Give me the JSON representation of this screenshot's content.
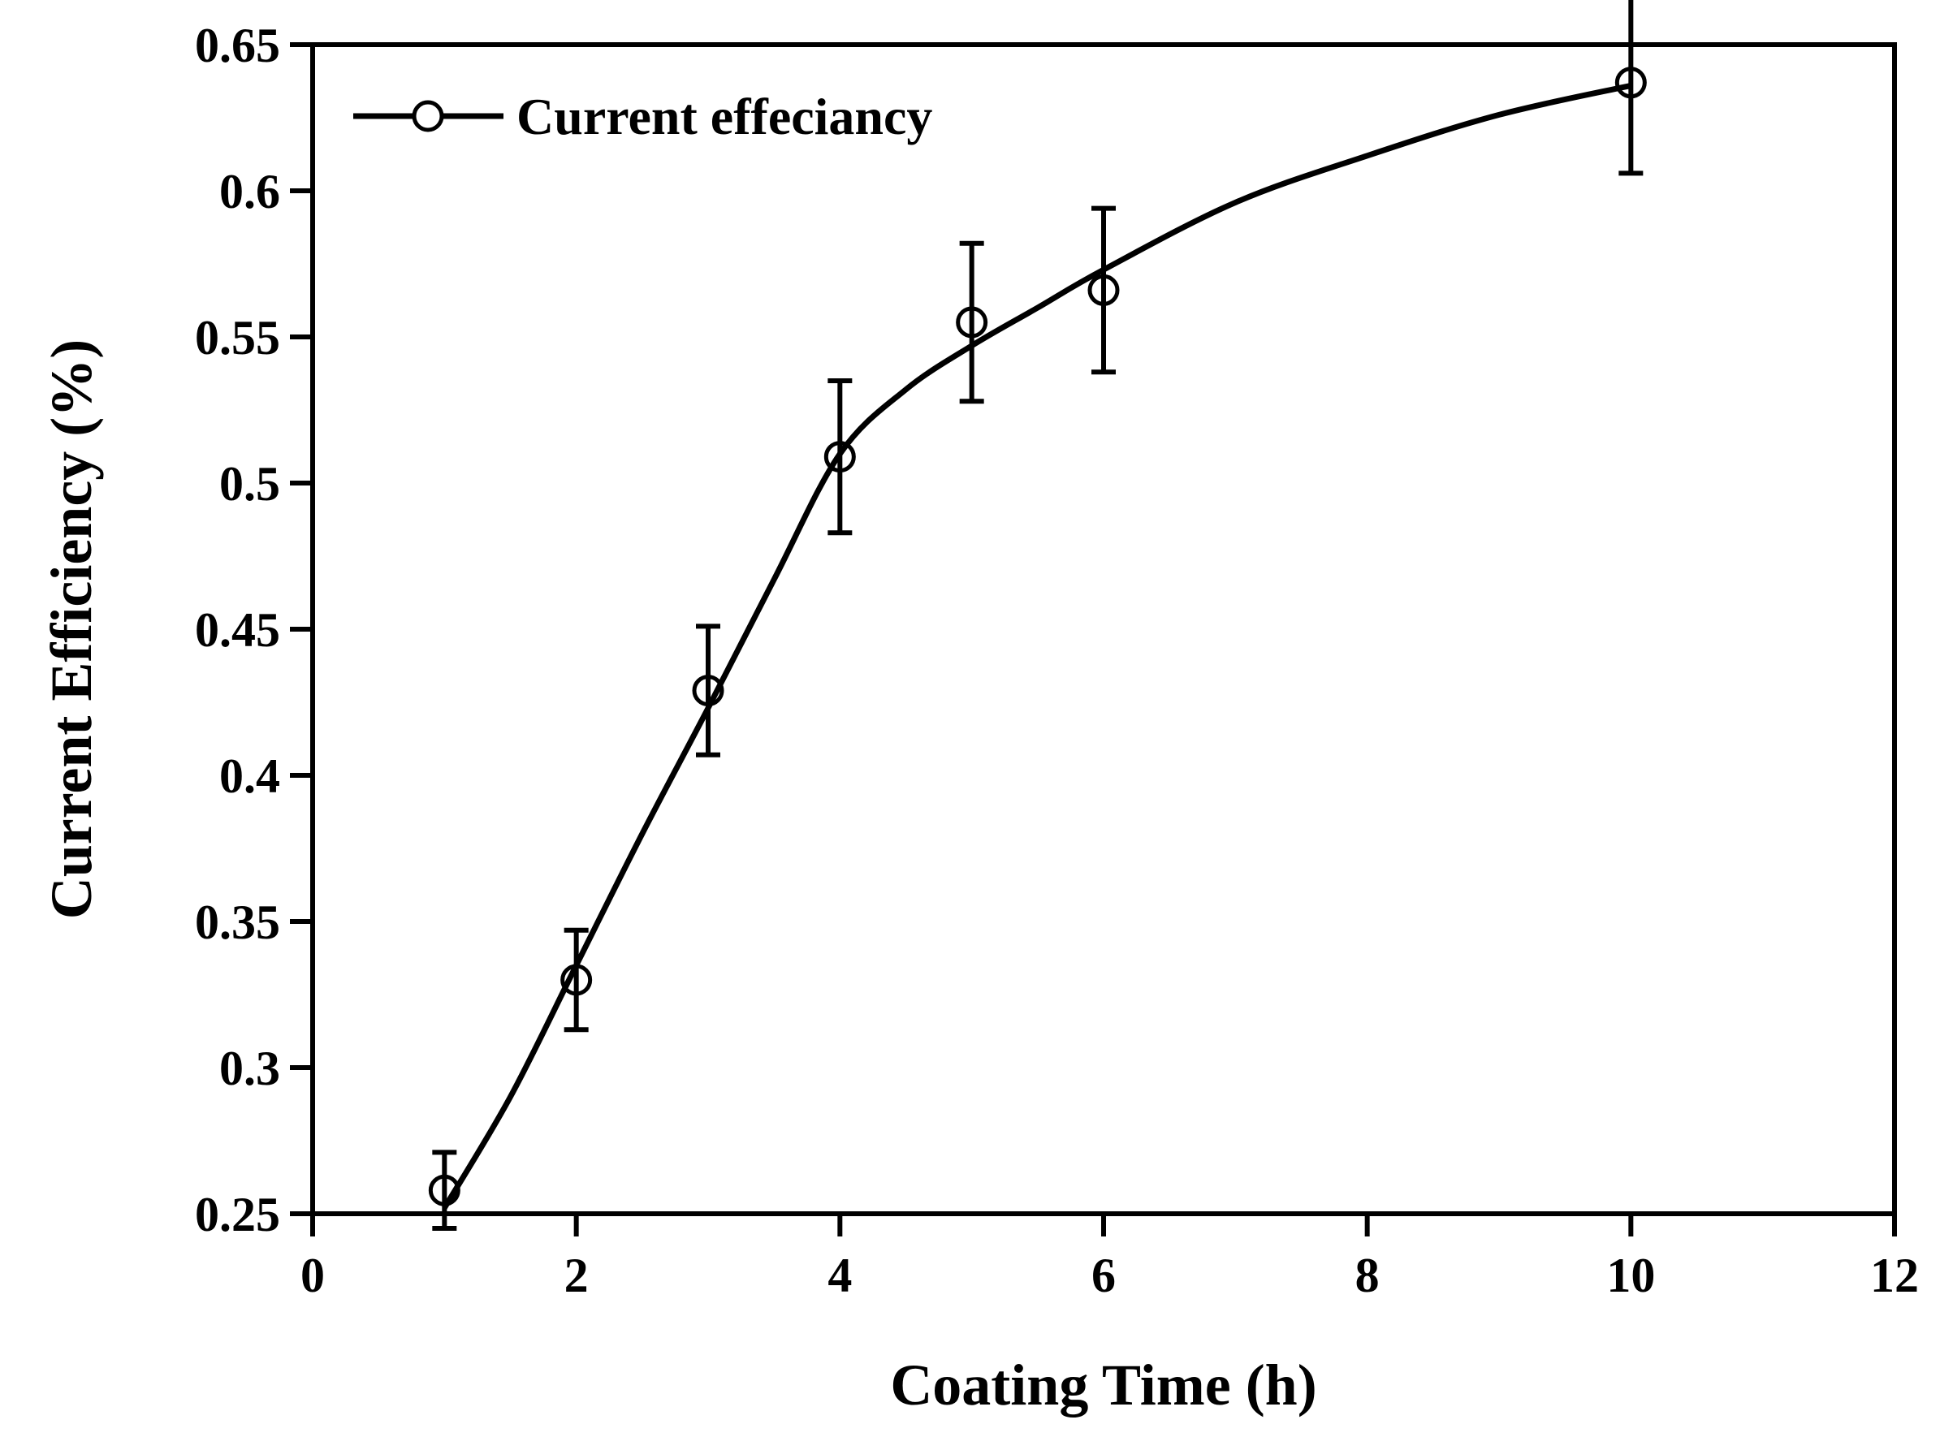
{
  "chart_data": {
    "type": "line",
    "xlabel": "Coating Time (h)",
    "ylabel": "Current Efficiency (%)",
    "xlim": [
      0,
      12
    ],
    "ylim": [
      0.25,
      0.65
    ],
    "x_ticks": [
      0,
      2,
      4,
      6,
      8,
      10,
      12
    ],
    "x_tick_labels": [
      "0",
      "2",
      "4",
      "6",
      "8",
      "10",
      "12"
    ],
    "y_ticks": [
      0.25,
      0.3,
      0.35,
      0.4,
      0.45,
      0.5,
      0.55,
      0.6,
      0.65
    ],
    "y_tick_labels": [
      "0.25",
      "0.3",
      "0.35",
      "0.4",
      "0.45",
      "0.5",
      "0.55",
      "0.6",
      "0.65"
    ],
    "grid": false,
    "legend_position": "top-left",
    "series": [
      {
        "name": "Current effeciancy",
        "marker": "open-circle",
        "color": "#000000",
        "x": [
          1,
          2,
          3,
          4,
          5,
          6,
          10
        ],
        "y": [
          0.258,
          0.33,
          0.429,
          0.509,
          0.555,
          0.566,
          0.637
        ],
        "error": [
          0.013,
          0.017,
          0.022,
          0.026,
          0.027,
          0.028,
          0.031
        ],
        "fit_line": [
          [
            1,
            0.252
          ],
          [
            1.5,
            0.29
          ],
          [
            2,
            0.335
          ],
          [
            2.5,
            0.38
          ],
          [
            3,
            0.423
          ],
          [
            3.5,
            0.467
          ],
          [
            4,
            0.51
          ],
          [
            4.5,
            0.532
          ],
          [
            5,
            0.547
          ],
          [
            5.5,
            0.56
          ],
          [
            6,
            0.573
          ],
          [
            7,
            0.596
          ],
          [
            8,
            0.612
          ],
          [
            9,
            0.626
          ],
          [
            10,
            0.636
          ]
        ]
      }
    ]
  }
}
